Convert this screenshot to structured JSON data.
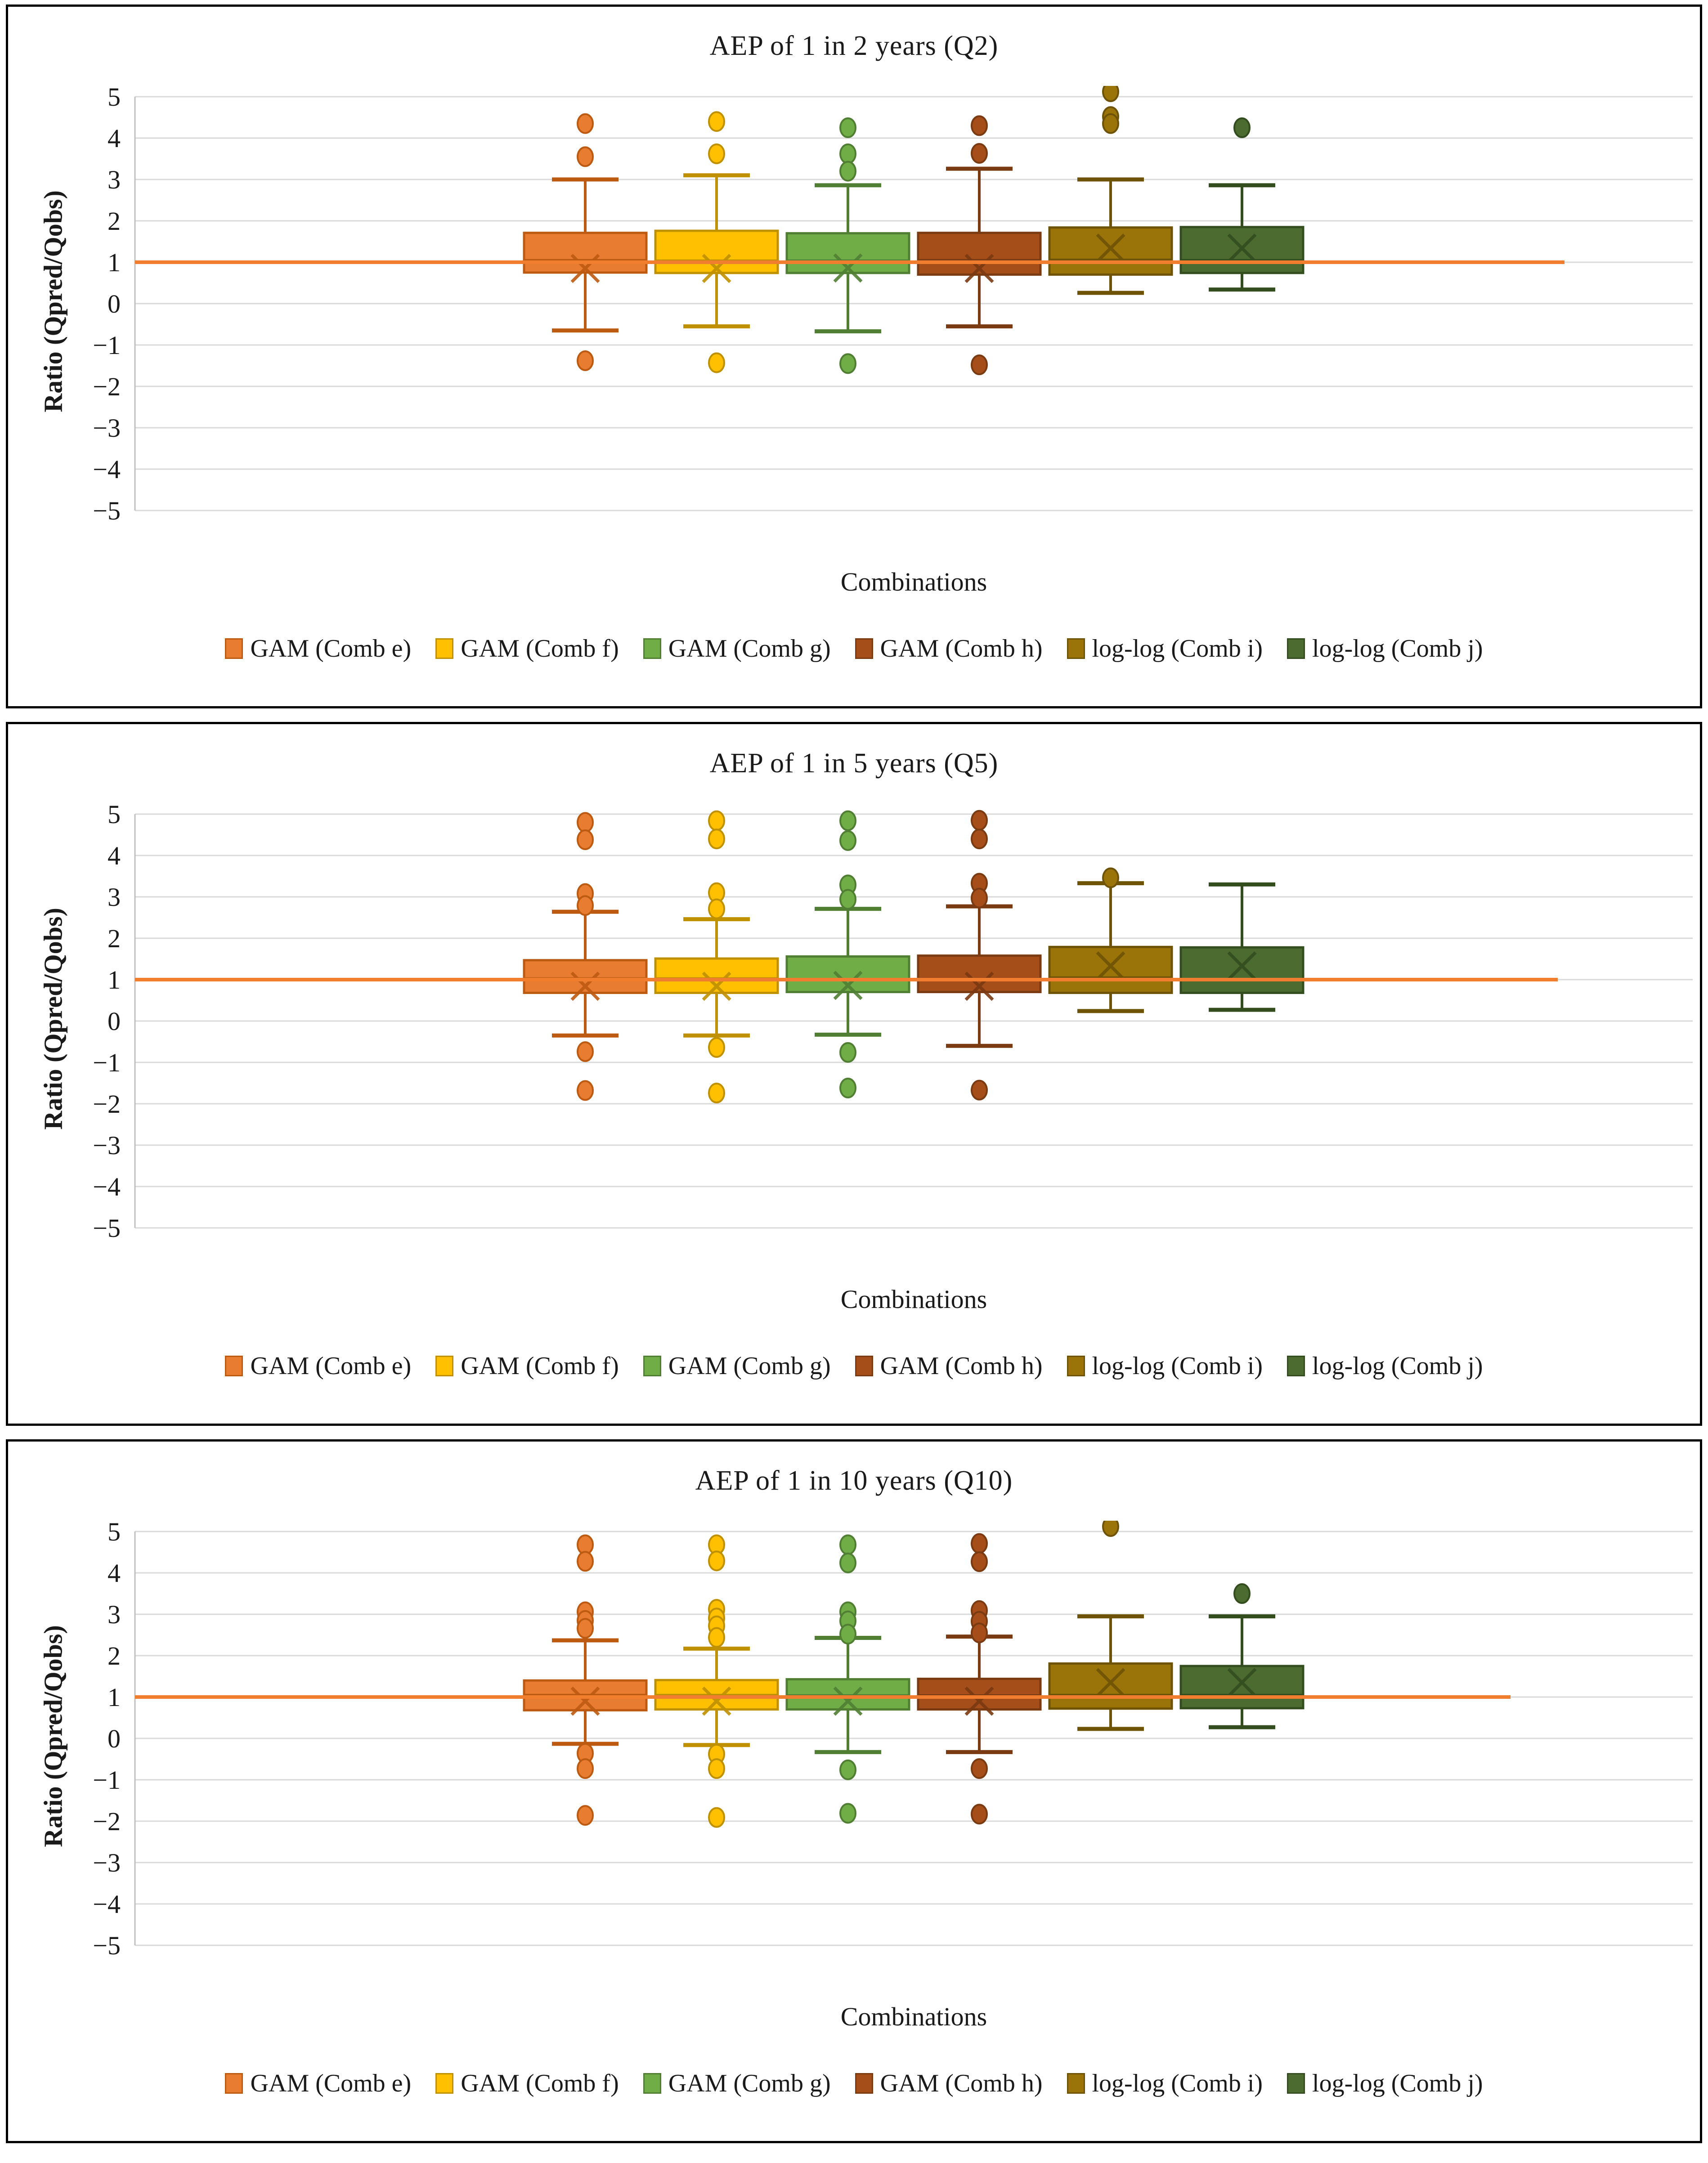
{
  "page_background": "#ffffff",
  "colors": {
    "gridline": "#D9D9D9",
    "axis_line": "#BFBFBF",
    "reference_line": "#F07E2E",
    "panel_border": "#000000",
    "text": "#1a1a1a"
  },
  "y_tick_labels": [
    {
      "value": 5,
      "label": "5"
    },
    {
      "value": 4,
      "label": "4"
    },
    {
      "value": 3,
      "label": "3"
    },
    {
      "value": 2,
      "label": "2"
    },
    {
      "value": 1,
      "label": "1"
    },
    {
      "value": 0,
      "label": "0"
    },
    {
      "value": -1,
      "label": "−1"
    },
    {
      "value": -2,
      "label": "−2"
    },
    {
      "value": -3,
      "label": "−3"
    },
    {
      "value": -4,
      "label": "−4"
    },
    {
      "value": -5,
      "label": "−5"
    }
  ],
  "chart_data": [
    {
      "type": "box",
      "title": "AEP of 1 in 2 years (Q2)",
      "xlabel": "Combinations",
      "ylabel": "Ratio (Qpred/Qobs)",
      "ylim": [
        -5,
        5
      ],
      "grid": true,
      "legend_position": "bottom",
      "reference_line_value": 1,
      "categories": [
        "GAM (Comb e)",
        "GAM (Comb f)",
        "GAM (Comb g)",
        "GAM (Comb h)",
        "log-log (Comb i)",
        "log-log (Comb j)"
      ],
      "series": [
        {
          "name": "GAM (Comb e)",
          "fill": "#E87D31",
          "stroke": "#BC5A12",
          "whisker_low": -0.65,
          "q1": 0.75,
          "median": 1.05,
          "mean": 0.85,
          "q3": 1.71,
          "whisker_high": 3.0,
          "outliers_high": [
            4.35,
            3.55
          ],
          "outliers_low": [
            -1.38
          ]
        },
        {
          "name": "GAM (Comb f)",
          "fill": "#FFC001",
          "stroke": "#BF9000",
          "whisker_low": -0.55,
          "q1": 0.74,
          "median": 1.04,
          "mean": 0.85,
          "q3": 1.76,
          "whisker_high": 3.1,
          "outliers_high": [
            4.4,
            3.62
          ],
          "outliers_low": [
            -1.43
          ]
        },
        {
          "name": "GAM (Comb g)",
          "fill": "#70AD47",
          "stroke": "#507E33",
          "whisker_low": -0.67,
          "q1": 0.74,
          "median": 1.04,
          "mean": 0.86,
          "q3": 1.7,
          "whisker_high": 2.86,
          "outliers_high": [
            4.25,
            3.62,
            3.2
          ],
          "outliers_low": [
            -1.45
          ]
        },
        {
          "name": "GAM (Comb h)",
          "fill": "#A54E1A",
          "stroke": "#7A3A12",
          "whisker_low": -0.55,
          "q1": 0.7,
          "median": 1.05,
          "mean": 0.85,
          "q3": 1.71,
          "whisker_high": 3.26,
          "outliers_high": [
            4.3,
            3.63
          ],
          "outliers_low": [
            -1.48
          ]
        },
        {
          "name": "log-log (Comb i)",
          "fill": "#9A7409",
          "stroke": "#6E5306",
          "whisker_low": 0.26,
          "q1": 0.7,
          "median": 1.06,
          "mean": 1.34,
          "q3": 1.84,
          "whisker_high": 3.0,
          "outliers_high": [
            5.12,
            4.52,
            4.35
          ],
          "outliers_low": []
        },
        {
          "name": "log-log (Comb j)",
          "fill": "#4B6B31",
          "stroke": "#344D1F",
          "whisker_low": 0.34,
          "q1": 0.74,
          "median": 1.05,
          "mean": 1.34,
          "q3": 1.85,
          "whisker_high": 2.86,
          "outliers_high": [
            4.25
          ],
          "outliers_low": []
        }
      ]
    },
    {
      "type": "box",
      "title": "AEP of 1 in 5 years (Q5)",
      "xlabel": "Combinations",
      "ylabel": "Ratio (Qpred/Qobs)",
      "ylim": [
        -5,
        5
      ],
      "grid": true,
      "legend_position": "bottom",
      "reference_line_value": 1,
      "categories": [
        "GAM (Comb e)",
        "GAM (Comb f)",
        "GAM (Comb g)",
        "GAM (Comb h)",
        "log-log (Comb i)",
        "log-log (Comb j)"
      ],
      "series": [
        {
          "name": "GAM (Comb e)",
          "fill": "#E87D31",
          "stroke": "#BC5A12",
          "whisker_low": -0.35,
          "q1": 0.68,
          "median": 1.03,
          "mean": 0.84,
          "q3": 1.47,
          "whisker_high": 2.64,
          "outliers_high": [
            4.8,
            4.38,
            3.08,
            2.79
          ],
          "outliers_low": [
            -0.74,
            -1.68
          ]
        },
        {
          "name": "GAM (Comb f)",
          "fill": "#FFC001",
          "stroke": "#BF9000",
          "whisker_low": -0.35,
          "q1": 0.68,
          "median": 1.03,
          "mean": 0.84,
          "q3": 1.51,
          "whisker_high": 2.46,
          "outliers_high": [
            4.84,
            4.4,
            3.1,
            2.71
          ],
          "outliers_low": [
            -0.64,
            -1.74
          ]
        },
        {
          "name": "GAM (Comb g)",
          "fill": "#70AD47",
          "stroke": "#507E33",
          "whisker_low": -0.33,
          "q1": 0.7,
          "median": 1.01,
          "mean": 0.86,
          "q3": 1.56,
          "whisker_high": 2.71,
          "outliers_high": [
            4.84,
            4.36,
            3.29,
            2.94
          ],
          "outliers_low": [
            -0.76,
            -1.62
          ]
        },
        {
          "name": "GAM (Comb h)",
          "fill": "#A54E1A",
          "stroke": "#7A3A12",
          "whisker_low": -0.6,
          "q1": 0.7,
          "median": 1.02,
          "mean": 0.84,
          "q3": 1.58,
          "whisker_high": 2.77,
          "outliers_high": [
            4.85,
            4.4,
            3.33,
            2.97
          ],
          "outliers_low": [
            -1.67
          ]
        },
        {
          "name": "log-log (Comb i)",
          "fill": "#9A7409",
          "stroke": "#6E5306",
          "whisker_low": 0.24,
          "q1": 0.68,
          "median": 1.05,
          "mean": 1.33,
          "q3": 1.79,
          "whisker_high": 3.33,
          "outliers_high": [
            3.46
          ],
          "outliers_low": []
        },
        {
          "name": "log-log (Comb j)",
          "fill": "#4B6B31",
          "stroke": "#344D1F",
          "whisker_low": 0.27,
          "q1": 0.68,
          "median": 1.01,
          "mean": 1.33,
          "q3": 1.78,
          "whisker_high": 3.3,
          "outliers_high": [],
          "outliers_low": []
        }
      ]
    },
    {
      "type": "box",
      "title": "AEP of 1 in 10 years (Q10)",
      "xlabel": "Combinations",
      "ylabel": "Ratio (Qpred/Qobs)",
      "ylim": [
        -5,
        5
      ],
      "grid": true,
      "legend_position": "bottom",
      "reference_line_value": 1,
      "categories": [
        "GAM (Comb e)",
        "GAM (Comb f)",
        "GAM (Comb g)",
        "GAM (Comb h)",
        "log-log (Comb i)",
        "log-log (Comb j)"
      ],
      "series": [
        {
          "name": "GAM (Comb e)",
          "fill": "#E87D31",
          "stroke": "#BC5A12",
          "whisker_low": -0.13,
          "q1": 0.68,
          "median": 1.05,
          "mean": 0.9,
          "q3": 1.4,
          "whisker_high": 2.37,
          "outliers_high": [
            4.68,
            4.28,
            3.06,
            2.85,
            2.66
          ],
          "outliers_low": [
            -0.36,
            -0.73,
            -1.86
          ]
        },
        {
          "name": "GAM (Comb f)",
          "fill": "#FFC001",
          "stroke": "#BF9000",
          "whisker_low": -0.16,
          "q1": 0.7,
          "median": 1.05,
          "mean": 0.9,
          "q3": 1.41,
          "whisker_high": 2.17,
          "outliers_high": [
            4.68,
            4.29,
            3.12,
            2.91,
            2.72,
            2.44
          ],
          "outliers_low": [
            -0.38,
            -0.73,
            -1.91
          ]
        },
        {
          "name": "GAM (Comb g)",
          "fill": "#70AD47",
          "stroke": "#507E33",
          "whisker_low": -0.33,
          "q1": 0.7,
          "median": 1.04,
          "mean": 0.9,
          "q3": 1.43,
          "whisker_high": 2.43,
          "outliers_high": [
            4.68,
            4.24,
            3.06,
            2.84,
            2.52
          ],
          "outliers_low": [
            -0.76,
            -1.81
          ]
        },
        {
          "name": "GAM (Comb h)",
          "fill": "#A54E1A",
          "stroke": "#7A3A12",
          "whisker_low": -0.33,
          "q1": 0.7,
          "median": 1.04,
          "mean": 0.9,
          "q3": 1.44,
          "whisker_high": 2.46,
          "outliers_high": [
            4.71,
            4.27,
            3.09,
            2.83,
            2.55
          ],
          "outliers_low": [
            -0.73,
            -1.83
          ]
        },
        {
          "name": "log-log (Comb i)",
          "fill": "#9A7409",
          "stroke": "#6E5306",
          "whisker_low": 0.23,
          "q1": 0.72,
          "median": 1.05,
          "mean": 1.35,
          "q3": 1.81,
          "whisker_high": 2.95,
          "outliers_high": [
            5.12
          ],
          "outliers_low": []
        },
        {
          "name": "log-log (Comb j)",
          "fill": "#4B6B31",
          "stroke": "#344D1F",
          "whisker_low": 0.27,
          "q1": 0.73,
          "median": 1.05,
          "mean": 1.35,
          "q3": 1.75,
          "whisker_high": 2.95,
          "outliers_high": [
            3.5
          ],
          "outliers_low": []
        }
      ]
    }
  ]
}
